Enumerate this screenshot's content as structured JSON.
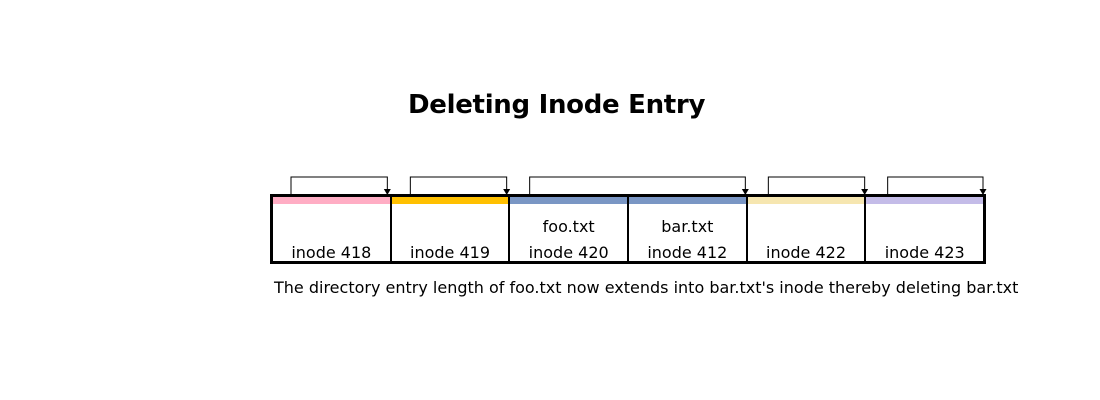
{
  "title": "Deleting Inode Entry",
  "caption": "The directory entry length of foo.txt now extends into bar.txt's inode thereby deleting bar.txt",
  "entries": [
    {
      "name": "",
      "label": "inode 418",
      "color": "#ffadc4"
    },
    {
      "name": "",
      "label": "inode 419",
      "color": "#ffc000"
    },
    {
      "name": "foo.txt",
      "label": "inode 420",
      "color": "#7a96c4"
    },
    {
      "name": "bar.txt",
      "label": "inode 412",
      "color": "#7a96c4"
    },
    {
      "name": "",
      "label": "inode 422",
      "color": "#f6e6b0"
    },
    {
      "name": "",
      "label": "inode 423",
      "color": "#c4bce8"
    }
  ],
  "links": [
    {
      "from": 0,
      "to": 1
    },
    {
      "from": 1,
      "to": 2
    },
    {
      "from": 2,
      "to": 4
    },
    {
      "from": 4,
      "to": 5
    },
    {
      "from": 5,
      "to": 6
    }
  ]
}
